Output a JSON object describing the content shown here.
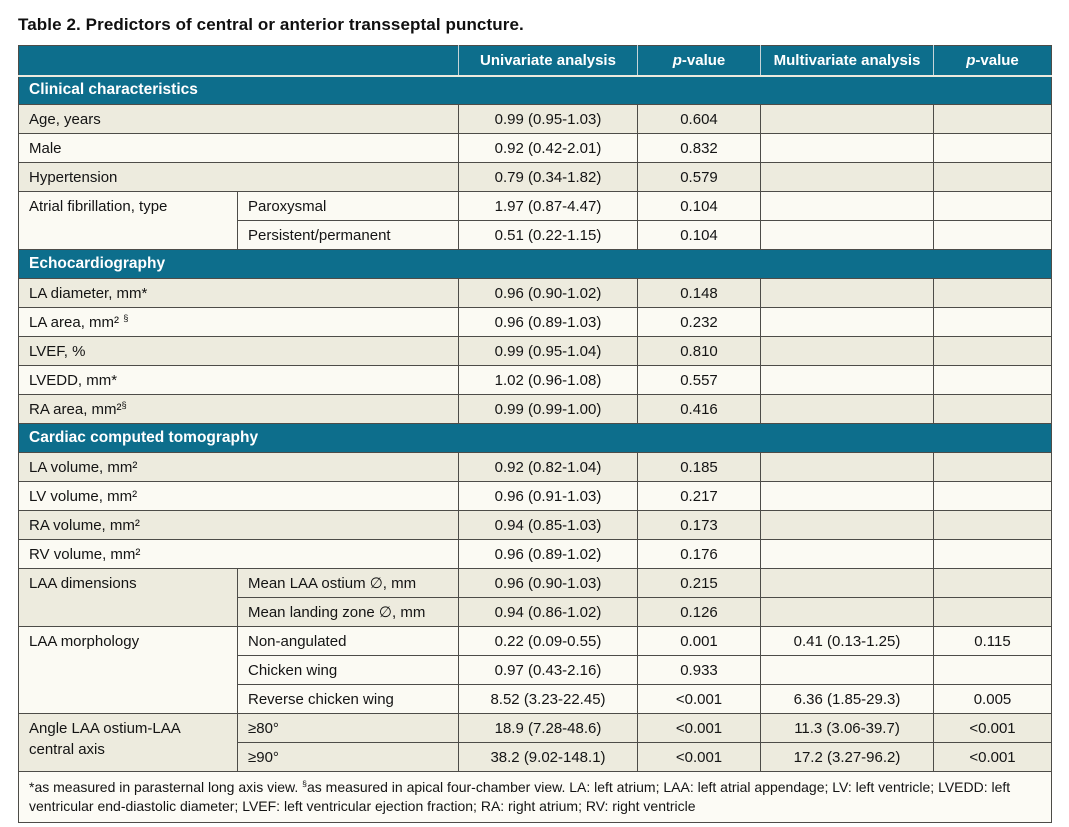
{
  "title": "Table 2. Predictors of central or anterior transseptal puncture.",
  "header": {
    "empty": "",
    "univariate": "Univariate analysis",
    "p_italic": "p",
    "p_rest": "-value",
    "multivariate": "Multivariate analysis"
  },
  "sections": [
    {
      "name": "Clinical characteristics",
      "rows": [
        {
          "shade": "beige",
          "label": "Age, years",
          "cells": [
            "0.99 (0.95-1.03)",
            "0.604",
            "",
            ""
          ]
        },
        {
          "shade": "white",
          "label": "Male",
          "cells": [
            "0.92 (0.42-2.01)",
            "0.832",
            "",
            ""
          ]
        },
        {
          "shade": "beige",
          "label": "Hypertension",
          "cells": [
            "0.79 (0.34-1.82)",
            "0.579",
            "",
            ""
          ]
        },
        {
          "shade": "white",
          "label": "Atrial fibrillation, type",
          "subrows": [
            {
              "sub": "Paroxysmal",
              "cells": [
                "1.97 (0.87-4.47)",
                "0.104",
                "",
                ""
              ]
            },
            {
              "sub": "Persistent/permanent",
              "cells": [
                "0.51 (0.22-1.15)",
                "0.104",
                "",
                ""
              ]
            }
          ]
        }
      ]
    },
    {
      "name": "Echocardiography",
      "rows": [
        {
          "shade": "beige",
          "label": "LA diameter, mm*",
          "cells": [
            "0.96 (0.90-1.02)",
            "0.148",
            "",
            ""
          ]
        },
        {
          "shade": "white",
          "label": "LA area, mm² §",
          "cells": [
            "0.96 (0.89-1.03)",
            "0.232",
            "",
            ""
          ]
        },
        {
          "shade": "beige",
          "label": "LVEF, %",
          "cells": [
            "0.99 (0.95-1.04)",
            "0.810",
            "",
            ""
          ]
        },
        {
          "shade": "white",
          "label": "LVEDD, mm*",
          "cells": [
            "1.02 (0.96-1.08)",
            "0.557",
            "",
            ""
          ]
        },
        {
          "shade": "beige",
          "label": "RA area, mm²§",
          "cells": [
            "0.99 (0.99-1.00)",
            "0.416",
            "",
            ""
          ]
        }
      ]
    },
    {
      "name": "Cardiac computed tomography",
      "rows": [
        {
          "shade": "beige",
          "label": "LA volume, mm²",
          "cells": [
            "0.92 (0.82-1.04)",
            "0.185",
            "",
            ""
          ]
        },
        {
          "shade": "white",
          "label": "LV volume, mm²",
          "cells": [
            "0.96 (0.91-1.03)",
            "0.217",
            "",
            ""
          ]
        },
        {
          "shade": "beige",
          "label": "RA volume, mm²",
          "cells": [
            "0.94 (0.85-1.03)",
            "0.173",
            "",
            ""
          ]
        },
        {
          "shade": "white",
          "label": "RV volume, mm²",
          "cells": [
            "0.96 (0.89-1.02)",
            "0.176",
            "",
            ""
          ]
        },
        {
          "shade": "beige",
          "label": "LAA dimensions",
          "subrows": [
            {
              "sub": "Mean LAA ostium ∅, mm",
              "cells": [
                "0.96 (0.90-1.03)",
                "0.215",
                "",
                ""
              ]
            },
            {
              "sub": "Mean landing zone ∅, mm",
              "cells": [
                "0.94 (0.86-1.02)",
                "0.126",
                "",
                ""
              ]
            }
          ]
        },
        {
          "shade": "white",
          "label": "LAA morphology",
          "subrows": [
            {
              "sub": "Non-angulated",
              "cells": [
                "0.22 (0.09-0.55)",
                "0.001",
                "0.41 (0.13-1.25)",
                "0.115"
              ]
            },
            {
              "sub": "Chicken wing",
              "cells": [
                "0.97 (0.43-2.16)",
                "0.933",
                "",
                ""
              ]
            },
            {
              "sub": "Reverse chicken wing",
              "cells": [
                "8.52 (3.23-22.45)",
                "<0.001",
                "6.36 (1.85-29.3)",
                "0.005"
              ]
            }
          ]
        },
        {
          "shade": "beige",
          "label": "Angle LAA ostium-LAA central axis",
          "subrows": [
            {
              "sub": "≥80°",
              "cells": [
                "18.9 (7.28-48.6)",
                "<0.001",
                "11.3 (3.06-39.7)",
                "<0.001"
              ]
            },
            {
              "sub": "≥90°",
              "cells": [
                "38.2 (9.02-148.1)",
                "<0.001",
                "17.2 (3.27-96.2)",
                "<0.001"
              ]
            }
          ]
        }
      ]
    }
  ],
  "footnote": "*as measured in parasternal long axis view. §as measured in apical four-chamber view. LA: left atrium; LAA: left atrial appendage; LV: left ventricle; LVEDD: left ventricular end-diastolic diameter; LVEF: left ventricular ejection fraction; RA: right atrium; RV: right ventricle",
  "colors": {
    "teal": "#0D6E8C",
    "beige": "#EDEBDE",
    "whiterow": "#FBFAF3",
    "border": "#4D4C48"
  }
}
